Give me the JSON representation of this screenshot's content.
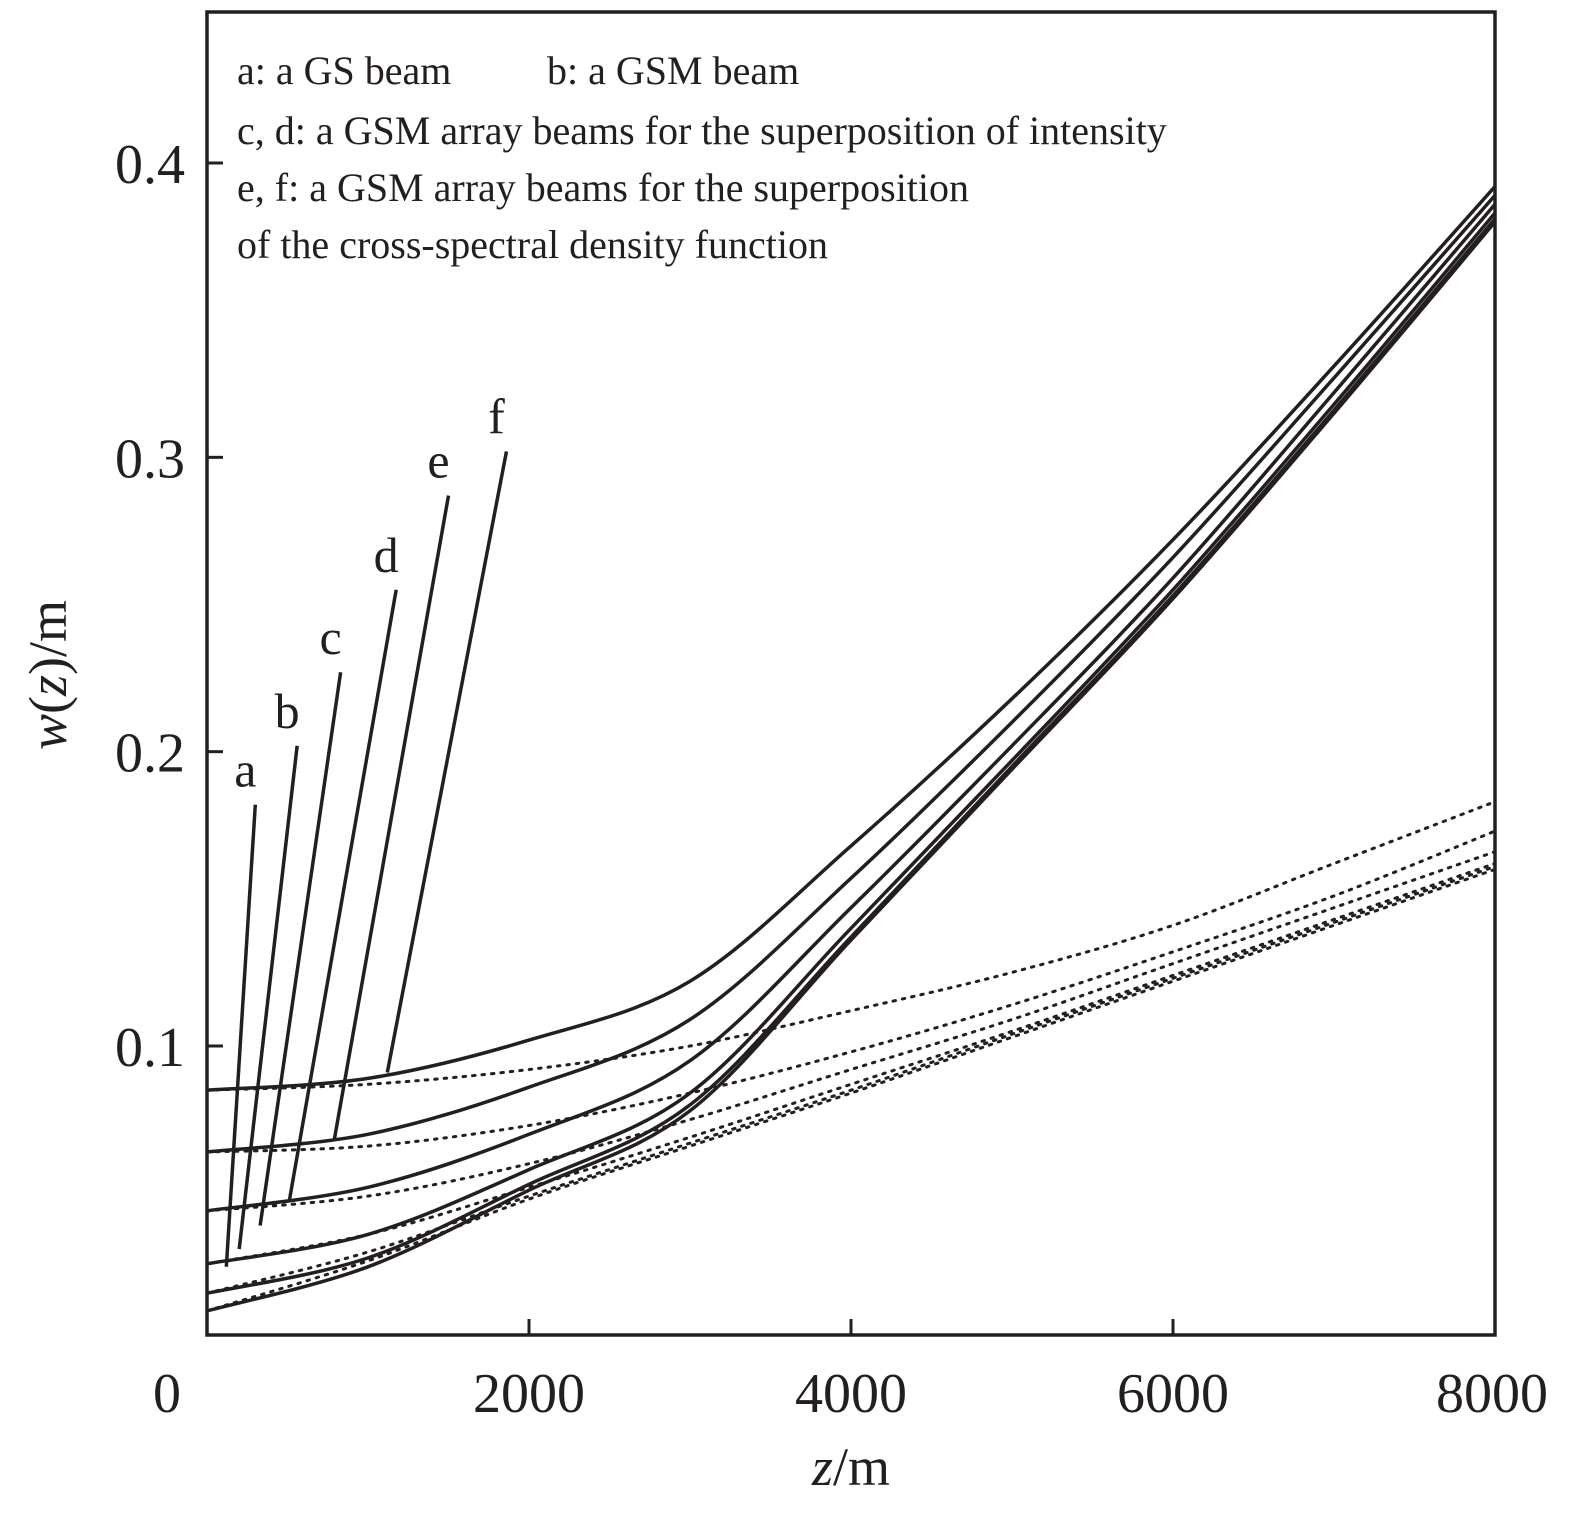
{
  "chart_data": {
    "type": "line",
    "xlabel": {
      "var": "z",
      "unit": "/m"
    },
    "ylabel": {
      "fn": "w",
      "var": "z",
      "unit": "/m"
    },
    "xlim": [
      0,
      8000
    ],
    "ylim": [
      0,
      0.44
    ],
    "x_ticks": [
      0,
      2000,
      4000,
      6000,
      8000
    ],
    "x_tick_labels": [
      "0",
      "2000",
      "4000",
      "6000",
      "8000"
    ],
    "y_ticks": [
      0.1,
      0.2,
      0.3,
      0.4
    ],
    "y_tick_labels": [
      "0.1",
      "0.2",
      "0.3",
      "0.4"
    ],
    "grid": false,
    "legend": {
      "placement": "top-left",
      "lines": [
        [
          "a: a GS beam",
          "b: a GSM beam"
        ],
        [
          "c, d: a GSM array beams for the superposition of intensity"
        ],
        [
          "e, f: a GSM array beams for the superposition"
        ],
        [
          "of the cross-spectral density function"
        ]
      ]
    },
    "x": [
      0,
      1000,
      2000,
      3000,
      4000,
      5000,
      6000,
      7000,
      8000
    ],
    "series": [
      {
        "name": "a",
        "style": "solid",
        "values": [
          0.01,
          0.025,
          0.051,
          0.078,
          0.136,
          0.194,
          0.252,
          0.315,
          0.38
        ]
      },
      {
        "name": "b",
        "style": "solid",
        "values": [
          0.016,
          0.028,
          0.053,
          0.08,
          0.137,
          0.195,
          0.253,
          0.316,
          0.381
        ]
      },
      {
        "name": "c",
        "style": "solid",
        "values": [
          0.026,
          0.036,
          0.058,
          0.084,
          0.14,
          0.197,
          0.255,
          0.318,
          0.383
        ]
      },
      {
        "name": "d",
        "style": "solid",
        "values": [
          0.044,
          0.052,
          0.07,
          0.095,
          0.147,
          0.202,
          0.259,
          0.322,
          0.386
        ]
      },
      {
        "name": "e",
        "style": "solid",
        "values": [
          0.064,
          0.07,
          0.086,
          0.109,
          0.157,
          0.21,
          0.266,
          0.327,
          0.389
        ]
      },
      {
        "name": "f",
        "style": "solid",
        "values": [
          0.085,
          0.089,
          0.102,
          0.122,
          0.168,
          0.218,
          0.272,
          0.331,
          0.392
        ]
      },
      {
        "name": "a",
        "style": "dotted",
        "values": [
          0.01,
          0.027,
          0.048,
          0.066,
          0.084,
          0.103,
          0.122,
          0.141,
          0.16
        ]
      },
      {
        "name": "b",
        "style": "dotted",
        "values": [
          0.016,
          0.03,
          0.049,
          0.067,
          0.085,
          0.104,
          0.123,
          0.142,
          0.161
        ]
      },
      {
        "name": "c",
        "style": "dotted",
        "values": [
          0.026,
          0.036,
          0.052,
          0.069,
          0.087,
          0.105,
          0.124,
          0.143,
          0.162
        ]
      },
      {
        "name": "d",
        "style": "dotted",
        "values": [
          0.044,
          0.049,
          0.06,
          0.075,
          0.092,
          0.109,
          0.128,
          0.147,
          0.166
        ]
      },
      {
        "name": "e",
        "style": "dotted",
        "values": [
          0.064,
          0.066,
          0.073,
          0.084,
          0.098,
          0.114,
          0.132,
          0.151,
          0.173
        ]
      },
      {
        "name": "f",
        "style": "dotted",
        "values": [
          0.085,
          0.087,
          0.092,
          0.1,
          0.112,
          0.125,
          0.141,
          0.162,
          0.183
        ]
      }
    ],
    "curve_labels": [
      {
        "text": "a",
        "x": 300,
        "y": 0.182,
        "target_x": 120,
        "target_y": 0.025
      },
      {
        "text": "b",
        "x": 560,
        "y": 0.202,
        "target_x": 200,
        "target_y": 0.031
      },
      {
        "text": "c",
        "x": 830,
        "y": 0.227,
        "target_x": 330,
        "target_y": 0.039
      },
      {
        "text": "d",
        "x": 1175,
        "y": 0.255,
        "target_x": 510,
        "target_y": 0.047
      },
      {
        "text": "e",
        "x": 1500,
        "y": 0.287,
        "target_x": 790,
        "target_y": 0.068
      },
      {
        "text": "f",
        "x": 1860,
        "y": 0.302,
        "target_x": 1120,
        "target_y": 0.091
      }
    ]
  }
}
